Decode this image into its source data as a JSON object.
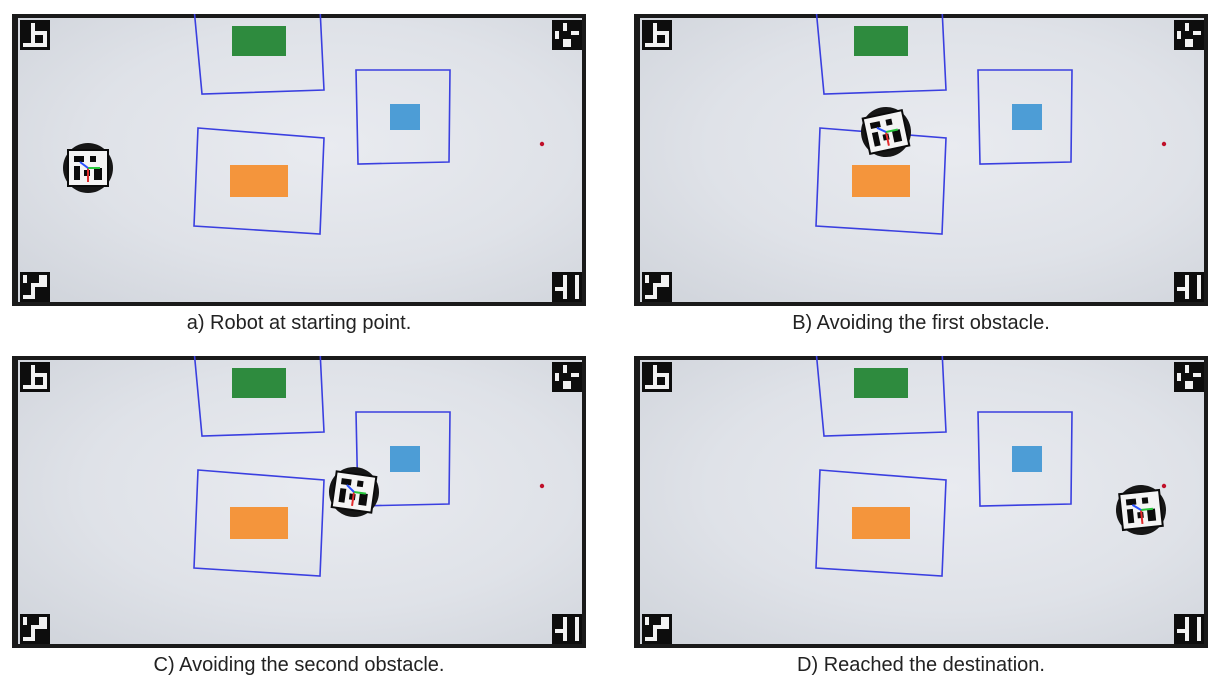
{
  "panels": [
    {
      "caption": "a) Robot at starting point.",
      "robot": "start"
    },
    {
      "caption": "B) Avoiding the first obstacle.",
      "robot": "first-obstacle"
    },
    {
      "caption": "C) Avoiding the second obstacle.",
      "robot": "second-obstacle"
    },
    {
      "caption": "D) Reached the destination.",
      "robot": "destination"
    }
  ],
  "colors": {
    "boundary": "#3a3fe0",
    "green_obstacle": "#2e8b3e",
    "blue_obstacle": "#4d9dd6",
    "orange_obstacle": "#f4953c",
    "target": "#c0102a"
  }
}
